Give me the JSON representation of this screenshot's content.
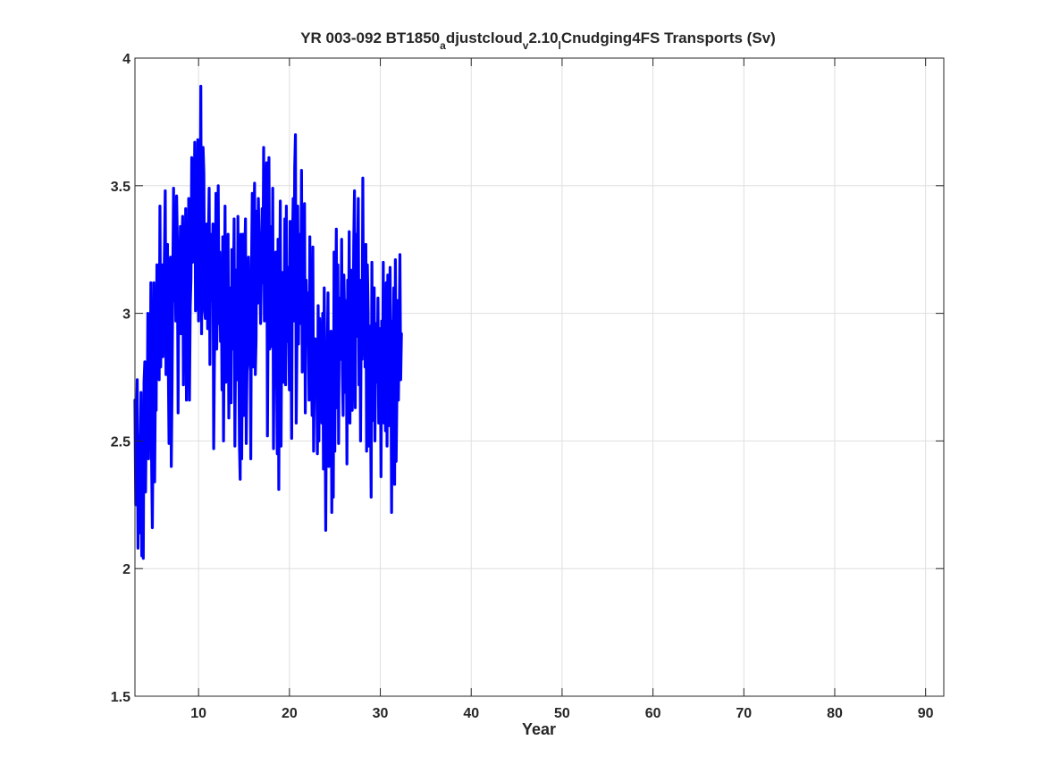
{
  "chart_data": {
    "type": "line",
    "title_parts": [
      {
        "text": "YR 003-092 BT1850",
        "sub": false
      },
      {
        "text": "a",
        "sub": true
      },
      {
        "text": "djustcloud",
        "sub": false
      },
      {
        "text": "v",
        "sub": true
      },
      {
        "text": "2.10",
        "sub": false
      },
      {
        "text": "l",
        "sub": true
      },
      {
        "text": "Cnudging4FS Transports (Sv)",
        "sub": false
      }
    ],
    "xlabel": "Year",
    "ylabel": "",
    "xlim": [
      3,
      92
    ],
    "ylim": [
      1.5,
      4
    ],
    "xticks": [
      10,
      20,
      30,
      40,
      50,
      60,
      70,
      80,
      90
    ],
    "yticks": [
      1.5,
      2,
      2.5,
      3,
      3.5,
      4
    ],
    "ytick_labels": [
      "1.5",
      "2",
      "2.5",
      "3",
      "3.5",
      "4"
    ],
    "grid": true,
    "series": [
      {
        "color": "#0000ff",
        "x_start": 3.0,
        "x_step": 0.0833,
        "values": [
          2.66,
          2.25,
          2.56,
          2.74,
          2.08,
          2.52,
          2.14,
          2.48,
          2.69,
          2.05,
          2.55,
          2.04,
          2.73,
          2.81,
          2.3,
          2.63,
          2.48,
          3.0,
          2.43,
          2.7,
          2.55,
          3.12,
          2.42,
          2.16,
          2.56,
          3.12,
          2.34,
          2.73,
          2.62,
          3.19,
          2.84,
          3.19,
          2.74,
          3.42,
          2.79,
          3.09,
          3.19,
          2.83,
          3.05,
          3.24,
          3.48,
          2.76,
          2.96,
          3.27,
          2.82,
          2.49,
          3.16,
          3.22,
          2.4,
          2.71,
          3.14,
          3.49,
          3.05,
          3.22,
          2.97,
          3.46,
          3.29,
          2.61,
          3.25,
          3.08,
          3.34,
          2.92,
          3.25,
          3.38,
          2.72,
          3.34,
          3.06,
          3.41,
          2.66,
          3.02,
          2.83,
          3.45,
          2.66,
          3.02,
          3.14,
          3.61,
          3.2,
          3.41,
          3.35,
          3.67,
          3.01,
          3.05,
          3.22,
          3.68,
          2.97,
          3.57,
          3.23,
          3.89,
          2.92,
          3.4,
          3.65,
          3.55,
          3.01,
          2.98,
          3.0,
          3.35,
          2.94,
          3.27,
          3.49,
          2.8,
          3.31,
          3.05,
          3.18,
          3.35,
          2.47,
          2.83,
          3.06,
          3.47,
          2.86,
          3.04,
          3.5,
          2.96,
          3.24,
          2.89,
          3.15,
          2.7,
          3.3,
          2.5,
          3.0,
          3.42,
          2.73,
          3.15,
          2.82,
          3.31,
          2.59,
          3.0,
          3.1,
          2.65,
          3.25,
          2.86,
          3.06,
          3.37,
          2.48,
          2.91,
          3.17,
          2.74,
          3.38,
          2.95,
          2.49,
          2.35,
          3.31,
          2.43,
          2.96,
          3.31,
          2.6,
          3.22,
          3.37,
          2.49,
          2.77,
          2.81,
          3.22,
          2.96,
          3.11,
          2.43,
          3.19,
          3.47,
          2.79,
          3.29,
          3.51,
          2.76,
          2.9,
          3.4,
          3.04,
          3.45,
          3.29,
          3.18,
          2.96,
          3.16,
          3.41,
          3.12,
          3.65,
          2.97,
          3.57,
          3.35,
          3.59,
          2.52,
          3.05,
          3.61,
          2.86,
          2.91,
          3.34,
          2.87,
          3.49,
          2.47,
          3.0,
          3.1,
          3.24,
          2.81,
          2.45,
          3.29,
          2.31,
          3.06,
          3.44,
          2.48,
          3.05,
          3.16,
          2.73,
          2.91,
          3.37,
          2.72,
          3.42,
          2.89,
          3.18,
          2.96,
          2.7,
          3.36,
          3.06,
          2.51,
          3.27,
          3.45,
          2.97,
          3.57,
          3.7,
          2.57,
          2.88,
          3.42,
          2.88,
          3.31,
          3.24,
          2.96,
          3.56,
          2.77,
          2.83,
          3.09,
          3.43,
          2.61,
          3.13,
          2.99,
          3.08,
          2.97,
          2.66,
          3.3,
          2.7,
          2.81,
          2.6,
          3.26,
          2.46,
          2.78,
          2.9,
          2.86,
          2.83,
          2.45,
          3.03,
          2.5,
          2.98,
          2.86,
          2.89,
          2.57,
          3.0,
          2.39,
          3.1,
          2.71,
          2.15,
          2.72,
          2.82,
          3.08,
          2.4,
          2.73,
          2.66,
          2.93,
          2.22,
          2.69,
          2.28,
          3.24,
          2.46,
          2.98,
          3.33,
          2.63,
          3.19,
          2.49,
          3.06,
          2.97,
          2.82,
          3.29,
          2.77,
          2.6,
          3.15,
          2.98,
          2.69,
          3.05,
          2.41,
          3.13,
          2.83,
          3.32,
          2.57,
          3.17,
          2.95,
          2.62,
          2.86,
          3.28,
          3.48,
          2.63,
          3.31,
          2.91,
          3.18,
          3.45,
          2.72,
          3.13,
          2.5,
          3.05,
          2.82,
          3.53,
          2.84,
          3.13,
          2.79,
          3.27,
          2.46,
          3.19,
          3.01,
          2.48,
          2.95,
          2.7,
          2.28,
          3.2,
          2.58,
          2.82,
          3.1,
          2.5,
          2.86,
          2.96,
          2.73,
          3.06,
          2.57,
          2.65,
          2.94,
          2.36,
          2.97,
          2.67,
          3.2,
          2.57,
          2.84,
          2.54,
          3.12,
          2.48,
          3.15,
          2.61,
          2.56,
          3.18,
          2.88,
          2.22,
          2.97,
          2.69,
          3.1,
          2.33,
          3.21,
          2.42,
          2.68,
          3.05,
          2.66,
          2.91,
          3.23,
          2.74,
          2.92
        ]
      }
    ]
  }
}
